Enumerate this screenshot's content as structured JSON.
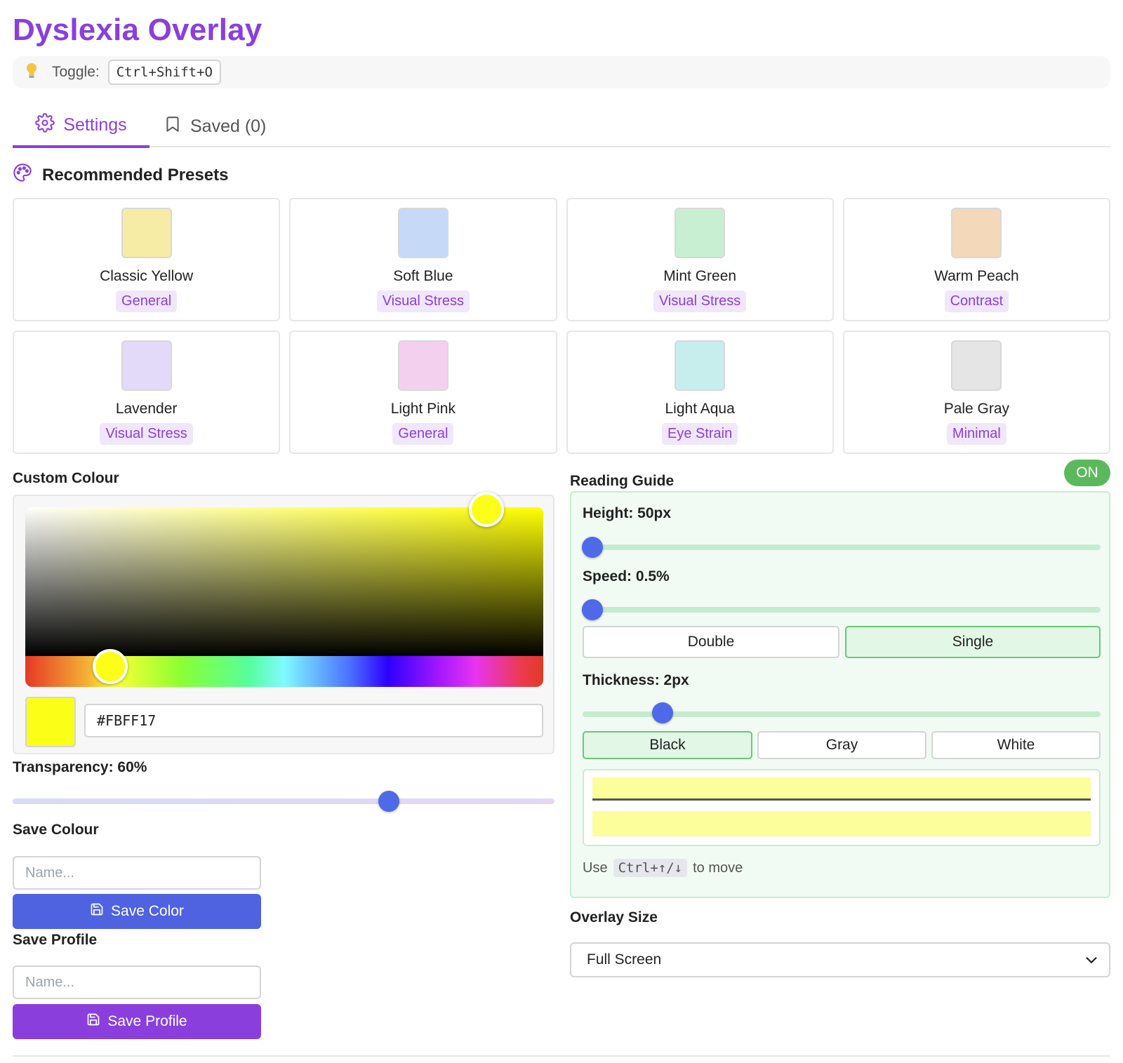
{
  "app": {
    "title": "Dyslexia Overlay",
    "toggle_label": "Toggle:",
    "toggle_shortcut": "Ctrl+Shift+O"
  },
  "tabs": [
    {
      "label": "Settings",
      "icon": "gear-icon",
      "active": true
    },
    {
      "label": "Saved (0)",
      "icon": "bookmark-icon",
      "active": false
    }
  ],
  "presets": {
    "title": "Recommended Presets",
    "icon": "palette-icon",
    "items": [
      {
        "name": "Classic Yellow",
        "tag": "General",
        "color": "#f7eca5"
      },
      {
        "name": "Soft Blue",
        "tag": "Visual Stress",
        "color": "#c6d9f7"
      },
      {
        "name": "Mint Green",
        "tag": "Visual Stress",
        "color": "#c8efd2"
      },
      {
        "name": "Warm Peach",
        "tag": "Contrast",
        "color": "#f3d8ba"
      },
      {
        "name": "Lavender",
        "tag": "Visual Stress",
        "color": "#e3daf9"
      },
      {
        "name": "Light Pink",
        "tag": "General",
        "color": "#f3d1ee"
      },
      {
        "name": "Light Aqua",
        "tag": "Eye Strain",
        "color": "#c7eded"
      },
      {
        "name": "Pale Gray",
        "tag": "Minimal",
        "color": "#e5e5e5"
      }
    ]
  },
  "custom_colour": {
    "label": "Custom Colour",
    "hex": "#FBFF17",
    "transparency_label": "Transparency: 60%",
    "transparency": 0.6
  },
  "save_colour": {
    "label": "Save Colour",
    "placeholder": "Name...",
    "button": "Save Color",
    "button_color": "#4f63e0"
  },
  "save_profile": {
    "label": "Save Profile",
    "placeholder": "Name...",
    "button": "Save Profile",
    "button_color": "#8a3fdc"
  },
  "reading_guide": {
    "label": "Reading Guide",
    "status": "ON",
    "height_label": "Height: 50px",
    "speed_label": "Speed: 0.5%",
    "mode_options": [
      "Double",
      "Single"
    ],
    "mode_selected": "Single",
    "thickness_label": "Thickness: 2px",
    "line_colors": [
      "Black",
      "Gray",
      "White"
    ],
    "line_color_selected": "Black",
    "hint_prefix": "Use",
    "hint_key": "Ctrl+↑/↓",
    "hint_suffix": "to move"
  },
  "overlay_size": {
    "label": "Overlay Size",
    "selected": "Full Screen"
  },
  "colors": {
    "accent": "#8a3fdc",
    "primary": "#4f63e0",
    "on_badge": "#5cb85c"
  }
}
